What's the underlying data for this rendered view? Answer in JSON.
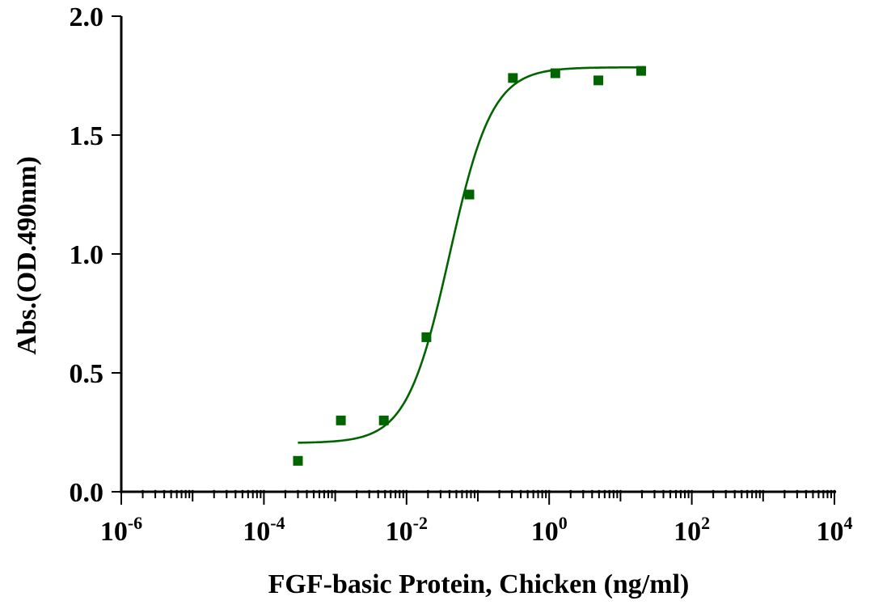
{
  "chart_data": {
    "type": "scatter",
    "title": "",
    "xlabel": "FGF-basic Protein, Chicken  (ng/ml)",
    "ylabel": "Abs.(OD.490nm)",
    "x_scale": "log",
    "xlim": [
      1e-06,
      10000
    ],
    "ylim": [
      0,
      2.0
    ],
    "x_tick_labels": [
      {
        "base": "10",
        "exp": "-6",
        "value": 1e-06
      },
      {
        "base": "10",
        "exp": "-4",
        "value": 0.0001
      },
      {
        "base": "10",
        "exp": "-2",
        "value": 0.01
      },
      {
        "base": "10",
        "exp": "0",
        "value": 1
      },
      {
        "base": "10",
        "exp": "2",
        "value": 100
      },
      {
        "base": "10",
        "exp": "4",
        "value": 10000
      }
    ],
    "y_tick_labels": [
      "0.0",
      "0.5",
      "1.0",
      "1.5",
      "2.0"
    ],
    "y_ticks": [
      0,
      0.5,
      1.0,
      1.5,
      2.0
    ],
    "color": "#006400",
    "grid": false,
    "series": [
      {
        "points": [
          {
            "x": 0.0003,
            "y": 0.13
          },
          {
            "x": 0.0012,
            "y": 0.3
          },
          {
            "x": 0.0048,
            "y": 0.3
          },
          {
            "x": 0.019,
            "y": 0.65
          },
          {
            "x": 0.076,
            "y": 1.25
          },
          {
            "x": 0.31,
            "y": 1.74
          },
          {
            "x": 1.22,
            "y": 1.76
          },
          {
            "x": 4.9,
            "y": 1.73
          },
          {
            "x": 19.5,
            "y": 1.77
          }
        ],
        "fit": {
          "model": "4PL",
          "bottom": 0.205,
          "top": 1.785,
          "ec50": 0.04,
          "hill": 1.45,
          "x_range": [
            0.0003,
            19.5
          ]
        }
      }
    ]
  }
}
